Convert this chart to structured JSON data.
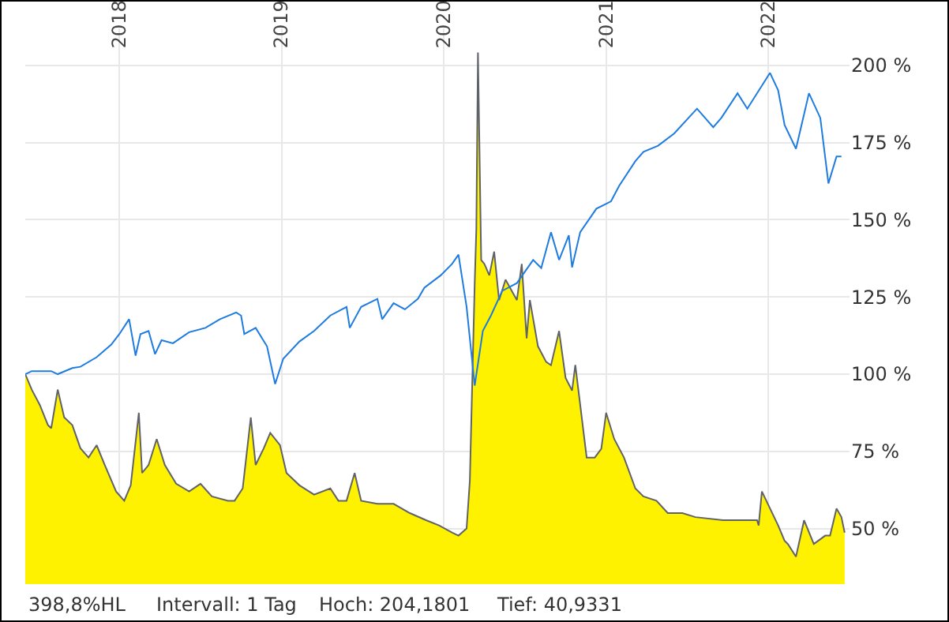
{
  "chart_data": {
    "type": "line",
    "x": [
      2017.42,
      2017.46,
      2017.58,
      2017.62,
      2017.71,
      2017.76,
      2017.86,
      2017.95,
      2018.0,
      2018.06,
      2018.1,
      2018.13,
      2018.18,
      2018.22,
      2018.26,
      2018.33,
      2018.43,
      2018.53,
      2018.62,
      2018.72,
      2018.75,
      2018.77,
      2018.84,
      2018.91,
      2018.96,
      2019.01,
      2019.11,
      2019.2,
      2019.3,
      2019.4,
      2019.42,
      2019.49,
      2019.59,
      2019.62,
      2019.69,
      2019.76,
      2019.84,
      2019.88,
      2019.98,
      2020.05,
      2020.09,
      2020.14,
      2020.19,
      2020.24,
      2020.29,
      2020.36,
      2020.45,
      2020.55,
      2020.6,
      2020.66,
      2020.71,
      2020.77,
      2020.79,
      2020.84,
      2020.94,
      2021.03,
      2021.08,
      2021.18,
      2021.23,
      2021.32,
      2021.42,
      2021.56,
      2021.66,
      2021.71,
      2021.81,
      2021.87,
      2022.01,
      2022.06,
      2022.1,
      2022.17,
      2022.25,
      2022.32,
      2022.37,
      2022.42,
      2022.45
    ],
    "series": [
      {
        "color": "#1e7be0",
        "values": [
          100,
          101,
          101,
          100,
          102,
          102.4,
          105.5,
          109.6,
          113,
          117.8,
          106,
          113,
          114,
          106.5,
          111,
          110,
          113.6,
          115,
          117.8,
          120,
          119,
          113,
          115,
          109,
          96.8,
          105,
          110.6,
          114,
          119,
          121.8,
          115,
          121.8,
          124.4,
          117.8,
          123,
          121,
          124.4,
          128,
          132,
          135.7,
          138.7,
          121.8,
          96.3,
          114,
          119,
          127,
          129.5,
          137,
          134.4,
          146,
          137,
          145,
          134.6,
          146,
          153.6,
          156,
          161,
          169,
          172,
          174,
          178,
          186,
          180,
          183,
          191,
          186,
          197.6,
          192,
          180.7,
          173,
          191,
          183,
          161.8,
          170.5,
          170.5
        ]
      },
      {
        "type": "area",
        "color": "#fff200",
        "x": [
          2017.42,
          2017.46,
          2017.51,
          2017.56,
          2017.58,
          2017.62,
          2017.66,
          2017.71,
          2017.76,
          2017.81,
          2017.86,
          2017.91,
          2017.98,
          2018.03,
          2018.07,
          2018.12,
          2018.14,
          2018.18,
          2018.23,
          2018.28,
          2018.35,
          2018.43,
          2018.5,
          2018.57,
          2018.67,
          2018.71,
          2018.76,
          2018.81,
          2018.84,
          2018.89,
          2018.93,
          2018.99,
          2019.03,
          2019.11,
          2019.2,
          2019.3,
          2019.35,
          2019.4,
          2019.45,
          2019.49,
          2019.59,
          2019.69,
          2019.79,
          2019.89,
          2019.97,
          2020.05,
          2020.09,
          2020.14,
          2020.16,
          2020.19,
          2020.2,
          2020.21,
          2020.23,
          2020.25,
          2020.28,
          2020.31,
          2020.34,
          2020.38,
          2020.45,
          2020.48,
          2020.51,
          2020.53,
          2020.58,
          2020.63,
          2020.66,
          2020.71,
          2020.75,
          2020.79,
          2020.81,
          2020.88,
          2020.93,
          2020.97,
          2021.0,
          2021.05,
          2021.11,
          2021.18,
          2021.23,
          2021.31,
          2021.38,
          2021.47,
          2021.55,
          2021.72,
          2021.93,
          2021.94,
          2021.96,
          2022.06,
          2022.1,
          2022.12,
          2022.17,
          2022.22,
          2022.28,
          2022.35,
          2022.38,
          2022.42,
          2022.45,
          2022.47
        ],
        "values": [
          100,
          95,
          90,
          83.5,
          82.5,
          95,
          86,
          83.5,
          76,
          73,
          77,
          70.6,
          62,
          59,
          64,
          87.5,
          68,
          70.6,
          79,
          70.6,
          64.5,
          62,
          64.5,
          60.4,
          59,
          59,
          63,
          86,
          70.6,
          76,
          81,
          77,
          68,
          64,
          61,
          63,
          59,
          59,
          68,
          59,
          58,
          58,
          55,
          52.7,
          51,
          48.7,
          47.7,
          50,
          65.5,
          129.5,
          147,
          204.2,
          137,
          135.7,
          132,
          139.7,
          124,
          130.6,
          124,
          135.7,
          111.6,
          124,
          109,
          104,
          102.9,
          114,
          98.8,
          94.7,
          103,
          73,
          73,
          75.8,
          87.5,
          79,
          73,
          63,
          60.4,
          59,
          55,
          55,
          53.7,
          52.7,
          52.7,
          51,
          62,
          51,
          46,
          45,
          40.9,
          52.7,
          45,
          47.7,
          47.7,
          56.5,
          53.7,
          48.7
        ]
      }
    ],
    "xlim": [
      2017.42,
      2022.5
    ],
    "xticks": [
      2018,
      2019,
      2020,
      2021,
      2022
    ],
    "ylim": [
      32,
      212
    ],
    "yticks": [
      {
        "value": 50,
        "label": "50 %"
      },
      {
        "value": 75,
        "label": "75 %"
      },
      {
        "value": 100,
        "label": "100 %"
      },
      {
        "value": 125,
        "label": "125 %"
      },
      {
        "value": 150,
        "label": "150 %"
      },
      {
        "value": 175,
        "label": "175 %"
      },
      {
        "value": 200,
        "label": "200 %"
      }
    ],
    "grid": true,
    "marker": "none",
    "annotations": [
      "398,8%HL",
      "Intervall: 1 Tag",
      "Hoch: 204,1801",
      "Tief: 40,9331"
    ]
  }
}
